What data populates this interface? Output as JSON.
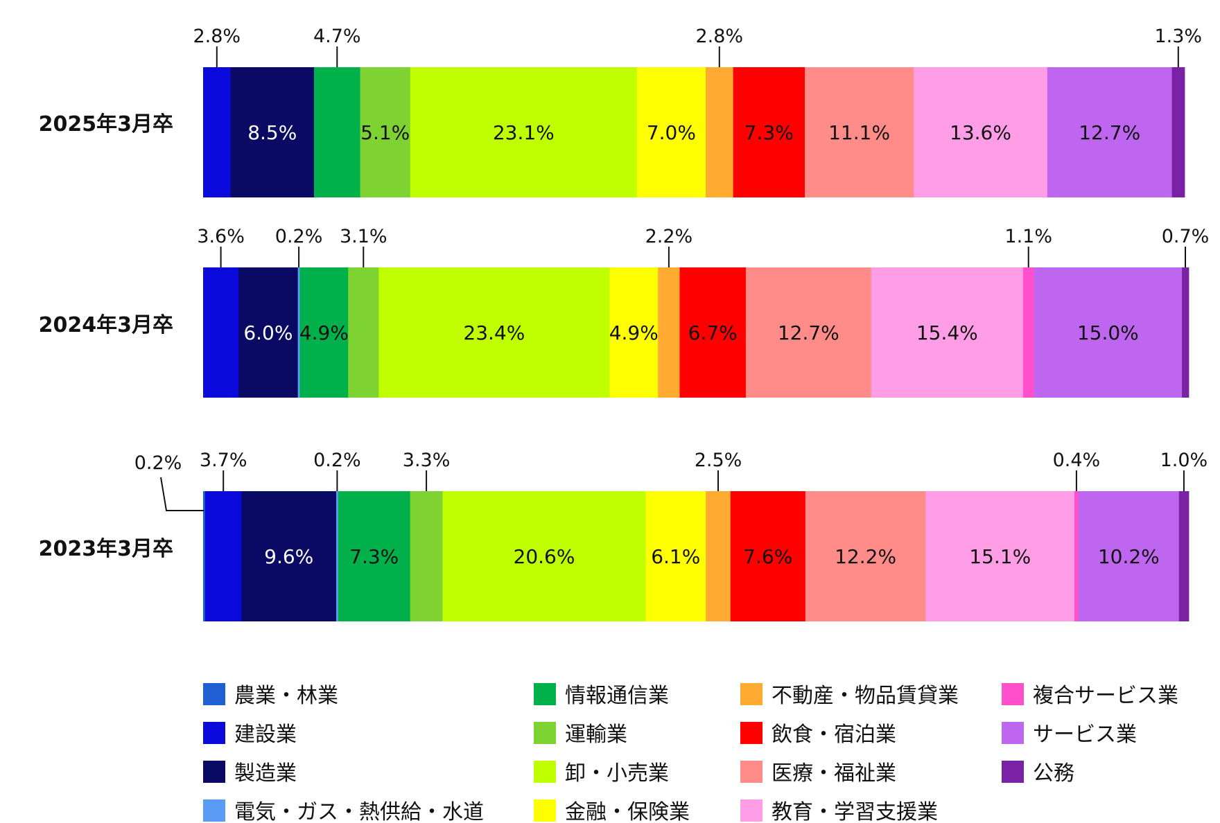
{
  "chart_data": {
    "type": "bar",
    "orientation": "horizontal",
    "stacked": true,
    "normalized": true,
    "title": "",
    "xlabel": "",
    "ylabel": "",
    "legend_position": "bottom",
    "grid": false,
    "categories": [
      "2025年3月卒",
      "2024年3月卒",
      "2023年3月卒"
    ],
    "series": [
      {
        "name": "農業・林業",
        "color": "#1F5FD3",
        "values": [
          0.0,
          0.0,
          0.2
        ],
        "labels": [
          "",
          "",
          "0.2%"
        ]
      },
      {
        "name": "建設業",
        "color": "#0A0ADC",
        "values": [
          2.8,
          3.6,
          3.7
        ],
        "labels": [
          "2.8%",
          "3.6%",
          "3.7%"
        ]
      },
      {
        "name": "製造業",
        "color": "#0A0A64",
        "values": [
          8.5,
          6.0,
          9.6
        ],
        "labels": [
          "8.5%",
          "6.0%",
          "9.6%"
        ]
      },
      {
        "name": "電気・ガス・熱供給・水道",
        "color": "#5A9CF5",
        "values": [
          0.0,
          0.2,
          0.2
        ],
        "labels": [
          "",
          "0.2%",
          "0.2%"
        ]
      },
      {
        "name": "情報通信業",
        "color": "#00B04A",
        "values": [
          4.7,
          4.9,
          7.3
        ],
        "labels": [
          "4.7%",
          "4.9%",
          "7.3%"
        ]
      },
      {
        "name": "運輸業",
        "color": "#7ED332",
        "values": [
          5.1,
          3.1,
          3.3
        ],
        "labels": [
          "5.1%",
          "3.1%",
          "3.3%"
        ]
      },
      {
        "name": "卸・小売業",
        "color": "#C0FF00",
        "values": [
          23.1,
          23.4,
          20.6
        ],
        "labels": [
          "23.1%",
          "23.4%",
          "20.6%"
        ]
      },
      {
        "name": "金融・保険業",
        "color": "#FFFF00",
        "values": [
          7.0,
          4.9,
          6.1
        ],
        "labels": [
          "7.0%",
          "4.9%",
          "6.1%"
        ]
      },
      {
        "name": "不動産・物品賃貸業",
        "color": "#FFAA30",
        "values": [
          2.8,
          2.2,
          2.5
        ],
        "labels": [
          "2.8%",
          "2.2%",
          "2.5%"
        ]
      },
      {
        "name": "飲食・宿泊業",
        "color": "#FF0000",
        "values": [
          7.3,
          6.7,
          7.6
        ],
        "labels": [
          "7.3%",
          "6.7%",
          "7.6%"
        ]
      },
      {
        "name": "医療・福祉業",
        "color": "#FF8C88",
        "values": [
          11.1,
          12.7,
          12.2
        ],
        "labels": [
          "11.1%",
          "12.7%",
          "12.2%"
        ]
      },
      {
        "name": "教育・学習支援業",
        "color": "#FF9DE6",
        "values": [
          13.6,
          15.4,
          15.1
        ],
        "labels": [
          "13.6%",
          "15.4%",
          "15.1%"
        ]
      },
      {
        "name": "複合サービス業",
        "color": "#FF4FCB",
        "values": [
          0.0,
          1.1,
          0.4
        ],
        "labels": [
          "",
          "1.1%",
          "0.4%"
        ]
      },
      {
        "name": "サービス業",
        "color": "#BE66F0",
        "values": [
          12.7,
          15.0,
          10.2
        ],
        "labels": [
          "12.7%",
          "15.0%",
          "10.2%"
        ]
      },
      {
        "name": "公務",
        "color": "#7A22A6",
        "values": [
          1.3,
          0.7,
          1.0
        ],
        "labels": [
          "1.3%",
          "0.7%",
          "1.0%"
        ]
      }
    ]
  }
}
